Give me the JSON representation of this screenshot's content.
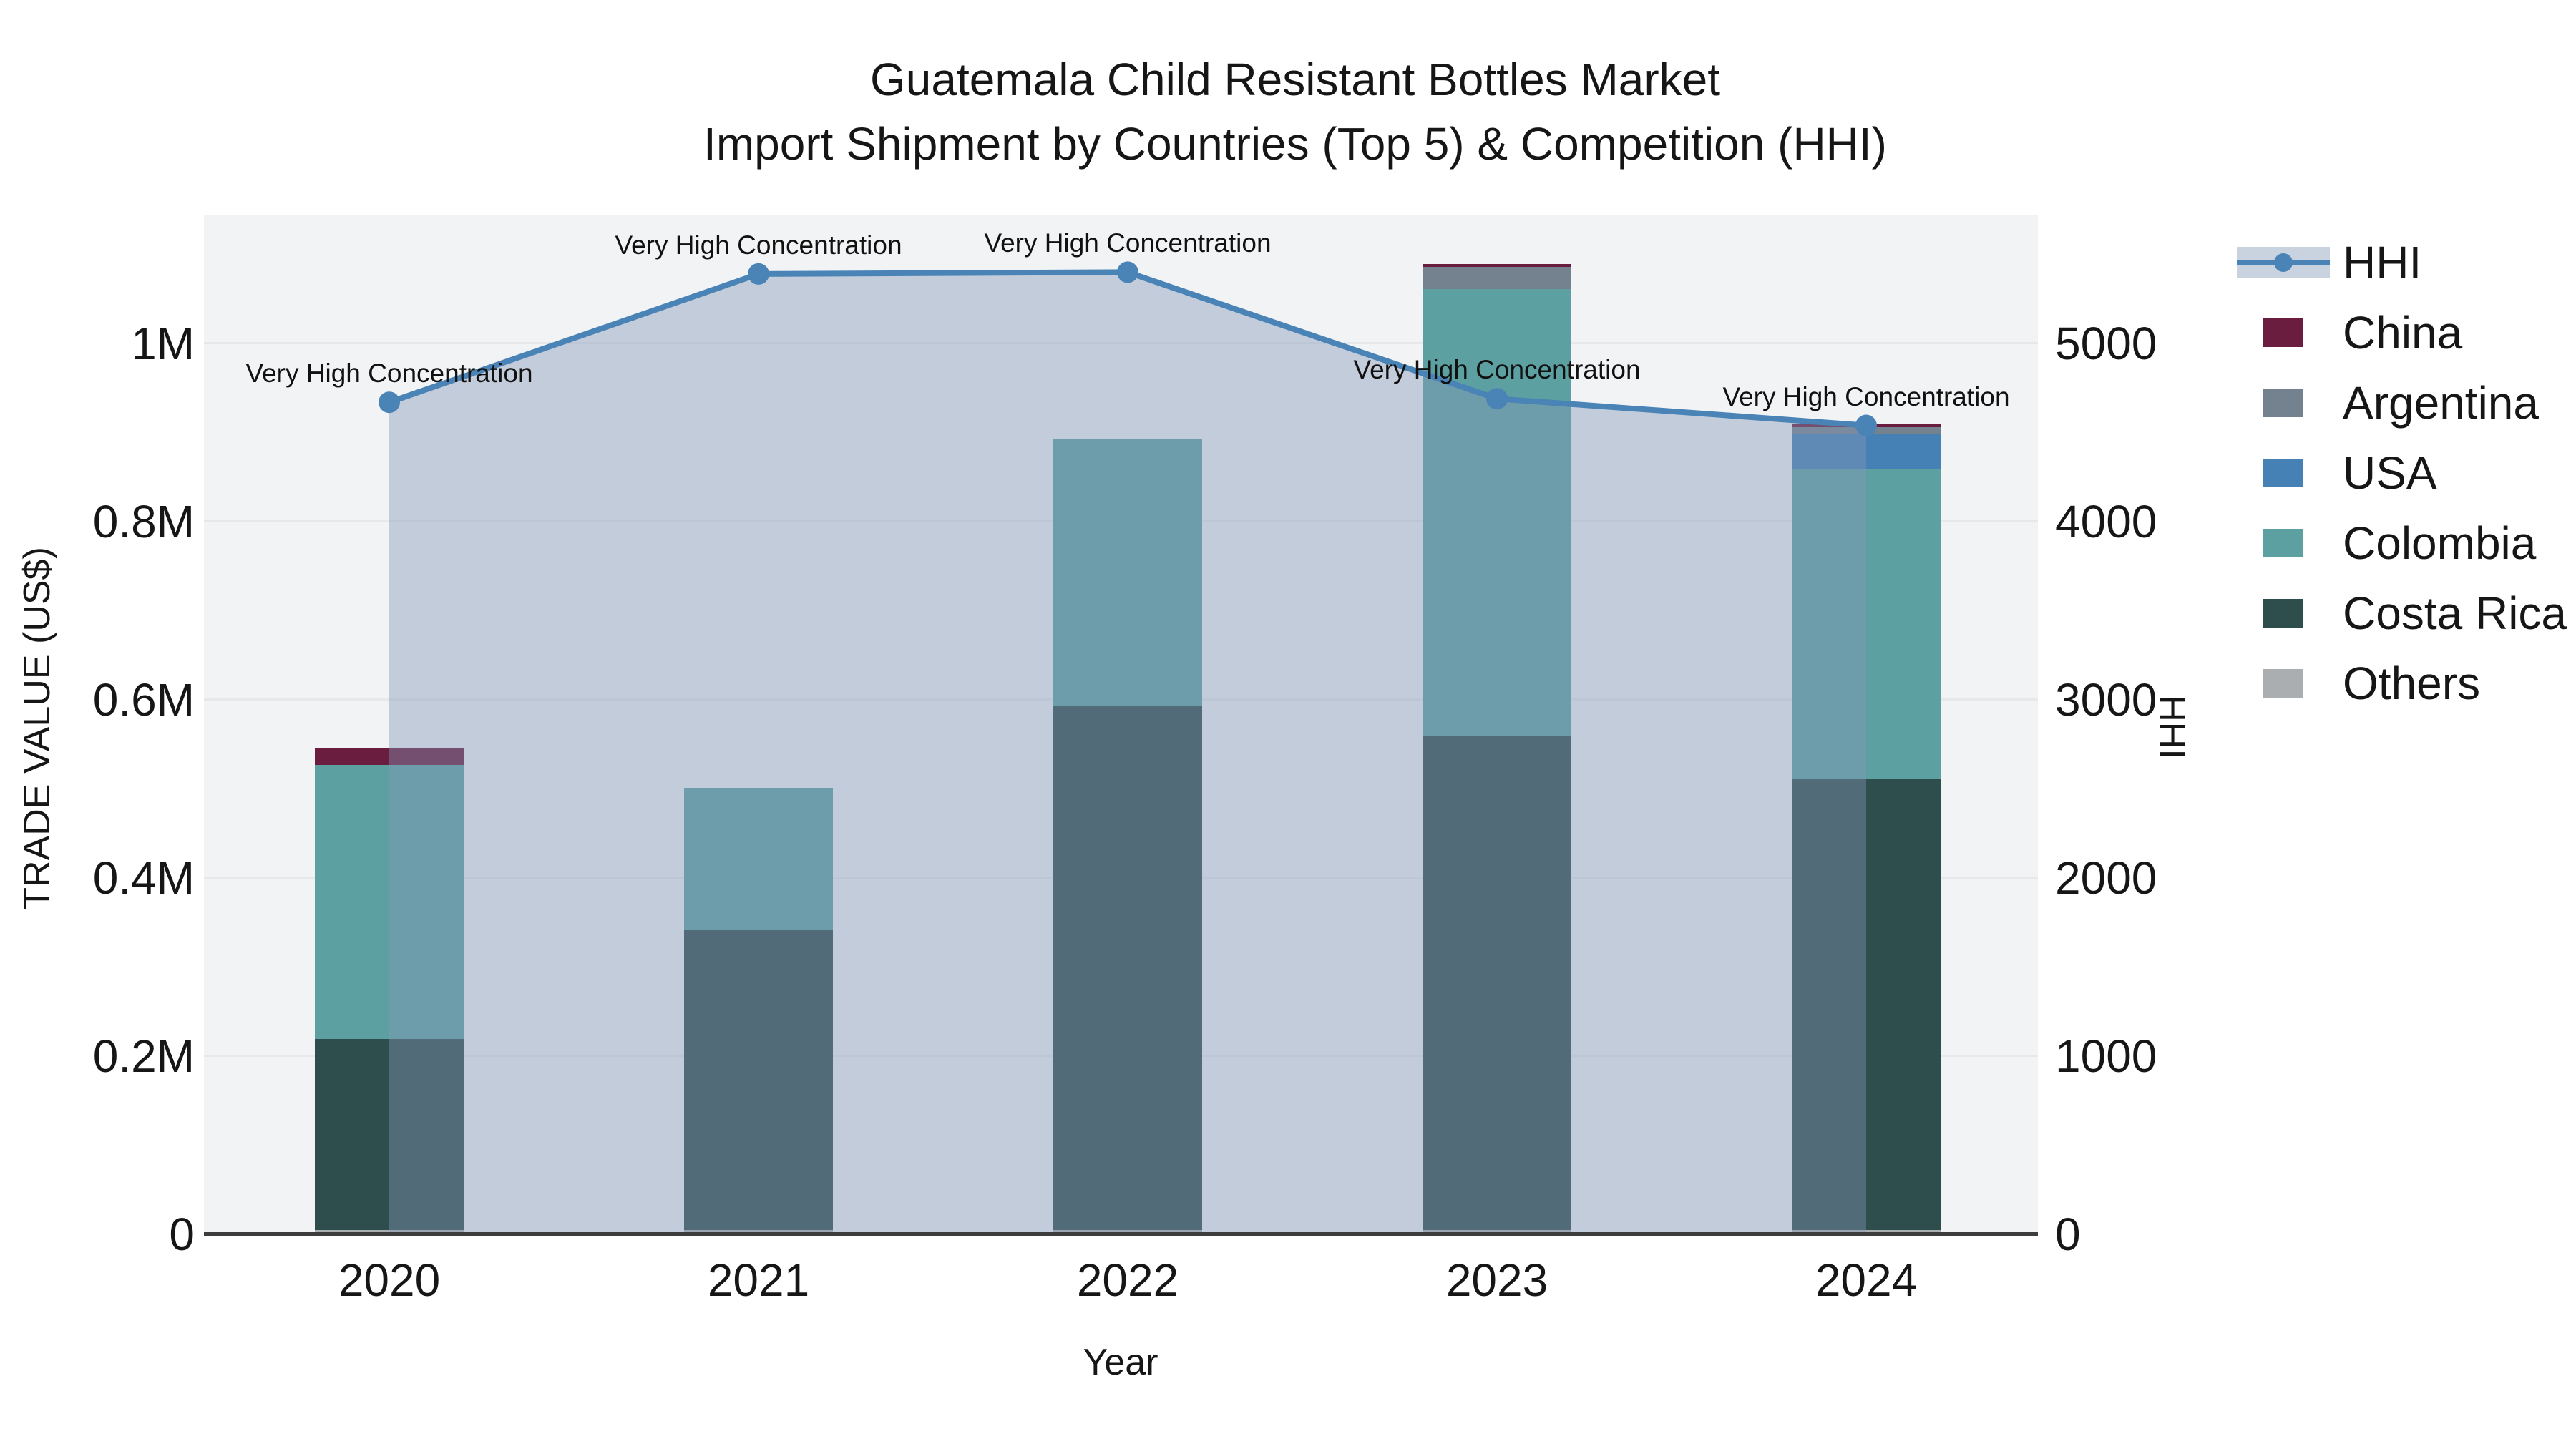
{
  "title": {
    "line1": "Guatemala Child Resistant Bottles Market",
    "line2": "Import Shipment by Countries (Top 5) & Competition (HHI)"
  },
  "chart_data": {
    "type": "bar+line",
    "title": "Guatemala Child Resistant Bottles Market Import Shipment by Countries (Top 5) & Competition (HHI)",
    "categories": [
      "2020",
      "2021",
      "2022",
      "2023",
      "2024"
    ],
    "xlabel": "Year",
    "ylabel_left": "TRADE VALUE (US$)",
    "ylabel_right": "HHI",
    "ylim_left": [
      0,
      1144578
    ],
    "ylim_right": [
      0,
      5723
    ],
    "grid": "horizontal-only",
    "legend_position": "right",
    "series": [
      {
        "name": "China",
        "color": "#6b1d3f",
        "values": [
          19000,
          0,
          0,
          3000,
          3000
        ]
      },
      {
        "name": "Argentina",
        "color": "#748290",
        "values": [
          0,
          0,
          0,
          25000,
          8000
        ]
      },
      {
        "name": "USA",
        "color": "#4681b5",
        "values": [
          0,
          0,
          0,
          0,
          39000
        ]
      },
      {
        "name": "Colombia",
        "color": "#5da0a2",
        "values": [
          308000,
          160000,
          299000,
          501000,
          348000
        ]
      },
      {
        "name": "Costa Rica",
        "color": "#2d4e4d",
        "values": [
          214000,
          336000,
          588000,
          555000,
          506000
        ]
      },
      {
        "name": "Others",
        "color": "#abaeb1",
        "values": [
          5000,
          5000,
          5000,
          5000,
          5000
        ]
      }
    ],
    "stack_order_bottom_to_top": [
      "Others",
      "Costa Rica",
      "Colombia",
      "USA",
      "Argentina",
      "China"
    ],
    "line_series": {
      "name": "HHI",
      "values": [
        4670,
        5390,
        5400,
        4690,
        4540
      ],
      "color": "#4a83b6",
      "fill_color": "rgba(130,150,180,0.42)",
      "marker": "circle"
    },
    "annotations": [
      {
        "category": "2020",
        "text": "Very High Concentration"
      },
      {
        "category": "2021",
        "text": "Very High Concentration"
      },
      {
        "category": "2022",
        "text": "Very High Concentration"
      },
      {
        "category": "2023",
        "text": "Very High Concentration"
      },
      {
        "category": "2024",
        "text": "Very High Concentration"
      }
    ],
    "yticks_left": [
      {
        "label": "0",
        "value": 0
      },
      {
        "label": "0.2M",
        "value": 200000
      },
      {
        "label": "0.4M",
        "value": 400000
      },
      {
        "label": "0.6M",
        "value": 600000
      },
      {
        "label": "0.8M",
        "value": 800000
      },
      {
        "label": "1M",
        "value": 1000000
      }
    ],
    "yticks_right": [
      {
        "label": "0",
        "value": 0
      },
      {
        "label": "1000",
        "value": 1000
      },
      {
        "label": "2000",
        "value": 2000
      },
      {
        "label": "3000",
        "value": 3000
      },
      {
        "label": "4000",
        "value": 4000
      },
      {
        "label": "5000",
        "value": 5000
      }
    ],
    "legend": [
      "HHI",
      "China",
      "Argentina",
      "USA",
      "Colombia",
      "Costa Rica",
      "Others"
    ]
  },
  "colors": {
    "plot_bg": "#f2f3f4",
    "gridline": "#e6e8ea",
    "axis_line": "#3d3d3d",
    "text": "#161616"
  }
}
